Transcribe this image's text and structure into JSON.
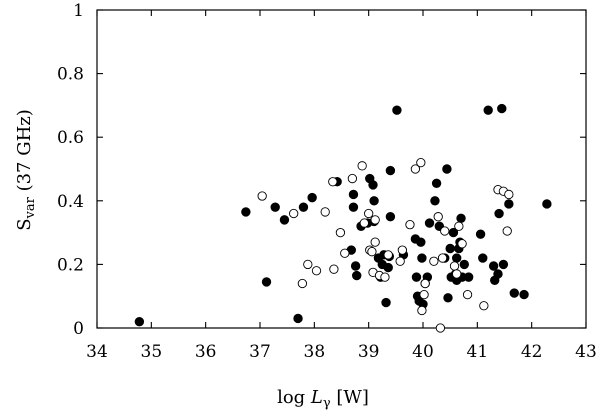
{
  "chart_data": {
    "type": "scatter",
    "xlabel": "log L_γ [W]",
    "xlabel_parts": {
      "prefix": "log ",
      "symbol": "L",
      "subscript": "γ",
      "suffix": " [W]"
    },
    "ylabel": "S_var (37 GHz)",
    "ylabel_parts": {
      "symbol": "S",
      "subscript": "var",
      "suffix": " (37 GHz)"
    },
    "xlim": [
      34,
      43
    ],
    "ylim": [
      0,
      1
    ],
    "xticks": [
      "34",
      "35",
      "36",
      "37",
      "38",
      "39",
      "40",
      "41",
      "42",
      "43"
    ],
    "yticks": [
      "0",
      "0.2",
      "0.4",
      "0.6",
      "0.8",
      "1"
    ],
    "grid": false,
    "series": [
      {
        "marker": "filled-circle",
        "points": [
          [
            34.78,
            0.02
          ],
          [
            36.74,
            0.365
          ],
          [
            37.12,
            0.145
          ],
          [
            37.28,
            0.38
          ],
          [
            37.45,
            0.34
          ],
          [
            37.7,
            0.03
          ],
          [
            37.8,
            0.38
          ],
          [
            37.96,
            0.41
          ],
          [
            38.42,
            0.46
          ],
          [
            38.68,
            0.245
          ],
          [
            38.72,
            0.38
          ],
          [
            38.72,
            0.42
          ],
          [
            38.76,
            0.195
          ],
          [
            38.78,
            0.165
          ],
          [
            38.86,
            0.32
          ],
          [
            38.98,
            0.33
          ],
          [
            39.02,
            0.47
          ],
          [
            39.08,
            0.45
          ],
          [
            39.1,
            0.4
          ],
          [
            39.1,
            0.335
          ],
          [
            39.18,
            0.22
          ],
          [
            39.22,
            0.16
          ],
          [
            39.25,
            0.2
          ],
          [
            39.28,
            0.23
          ],
          [
            39.32,
            0.08
          ],
          [
            39.36,
            0.19
          ],
          [
            39.38,
            0.225
          ],
          [
            39.4,
            0.35
          ],
          [
            39.4,
            0.495
          ],
          [
            39.52,
            0.685
          ],
          [
            39.64,
            0.23
          ],
          [
            39.86,
            0.28
          ],
          [
            39.88,
            0.16
          ],
          [
            39.9,
            0.1
          ],
          [
            39.93,
            0.085
          ],
          [
            39.96,
            0.27
          ],
          [
            39.98,
            0.22
          ],
          [
            40.0,
            0.075
          ],
          [
            40.04,
            0.14
          ],
          [
            40.08,
            0.16
          ],
          [
            40.12,
            0.33
          ],
          [
            40.22,
            0.4
          ],
          [
            40.25,
            0.455
          ],
          [
            40.3,
            0.32
          ],
          [
            40.4,
            0.22
          ],
          [
            40.44,
            0.5
          ],
          [
            40.46,
            0.095
          ],
          [
            40.5,
            0.25
          ],
          [
            40.52,
            0.16
          ],
          [
            40.56,
            0.3
          ],
          [
            40.6,
            0.17
          ],
          [
            40.62,
            0.15
          ],
          [
            40.62,
            0.22
          ],
          [
            40.66,
            0.25
          ],
          [
            40.68,
            0.27
          ],
          [
            40.7,
            0.345
          ],
          [
            40.72,
            0.16
          ],
          [
            40.76,
            0.2
          ],
          [
            40.84,
            0.16
          ],
          [
            41.06,
            0.295
          ],
          [
            41.1,
            0.22
          ],
          [
            41.2,
            0.685
          ],
          [
            41.3,
            0.195
          ],
          [
            41.32,
            0.15
          ],
          [
            41.38,
            0.17
          ],
          [
            41.4,
            0.36
          ],
          [
            41.45,
            0.69
          ],
          [
            41.48,
            0.2
          ],
          [
            41.58,
            0.39
          ],
          [
            41.68,
            0.11
          ],
          [
            41.86,
            0.105
          ],
          [
            42.28,
            0.39
          ]
        ]
      },
      {
        "marker": "open-circle",
        "points": [
          [
            37.04,
            0.415
          ],
          [
            37.62,
            0.36
          ],
          [
            37.78,
            0.14
          ],
          [
            37.88,
            0.2
          ],
          [
            38.04,
            0.18
          ],
          [
            38.2,
            0.365
          ],
          [
            38.34,
            0.46
          ],
          [
            38.36,
            0.185
          ],
          [
            38.48,
            0.3
          ],
          [
            38.56,
            0.235
          ],
          [
            38.7,
            0.47
          ],
          [
            38.88,
            0.51
          ],
          [
            38.92,
            0.33
          ],
          [
            39.0,
            0.36
          ],
          [
            39.02,
            0.245
          ],
          [
            39.06,
            0.24
          ],
          [
            39.08,
            0.175
          ],
          [
            39.12,
            0.34
          ],
          [
            39.12,
            0.27
          ],
          [
            39.2,
            0.165
          ],
          [
            39.3,
            0.16
          ],
          [
            39.36,
            0.23
          ],
          [
            39.58,
            0.21
          ],
          [
            39.62,
            0.245
          ],
          [
            39.76,
            0.325
          ],
          [
            39.86,
            0.5
          ],
          [
            39.96,
            0.52
          ],
          [
            39.98,
            0.055
          ],
          [
            40.02,
            0.105
          ],
          [
            40.04,
            0.14
          ],
          [
            40.2,
            0.21
          ],
          [
            40.28,
            0.35
          ],
          [
            40.32,
            0.0
          ],
          [
            40.36,
            0.22
          ],
          [
            40.4,
            0.305
          ],
          [
            40.58,
            0.195
          ],
          [
            40.62,
            0.17
          ],
          [
            40.66,
            0.32
          ],
          [
            40.72,
            0.265
          ],
          [
            40.82,
            0.105
          ],
          [
            41.12,
            0.07
          ],
          [
            41.38,
            0.435
          ],
          [
            41.48,
            0.43
          ],
          [
            41.55,
            0.305
          ],
          [
            41.58,
            0.42
          ]
        ]
      }
    ]
  }
}
